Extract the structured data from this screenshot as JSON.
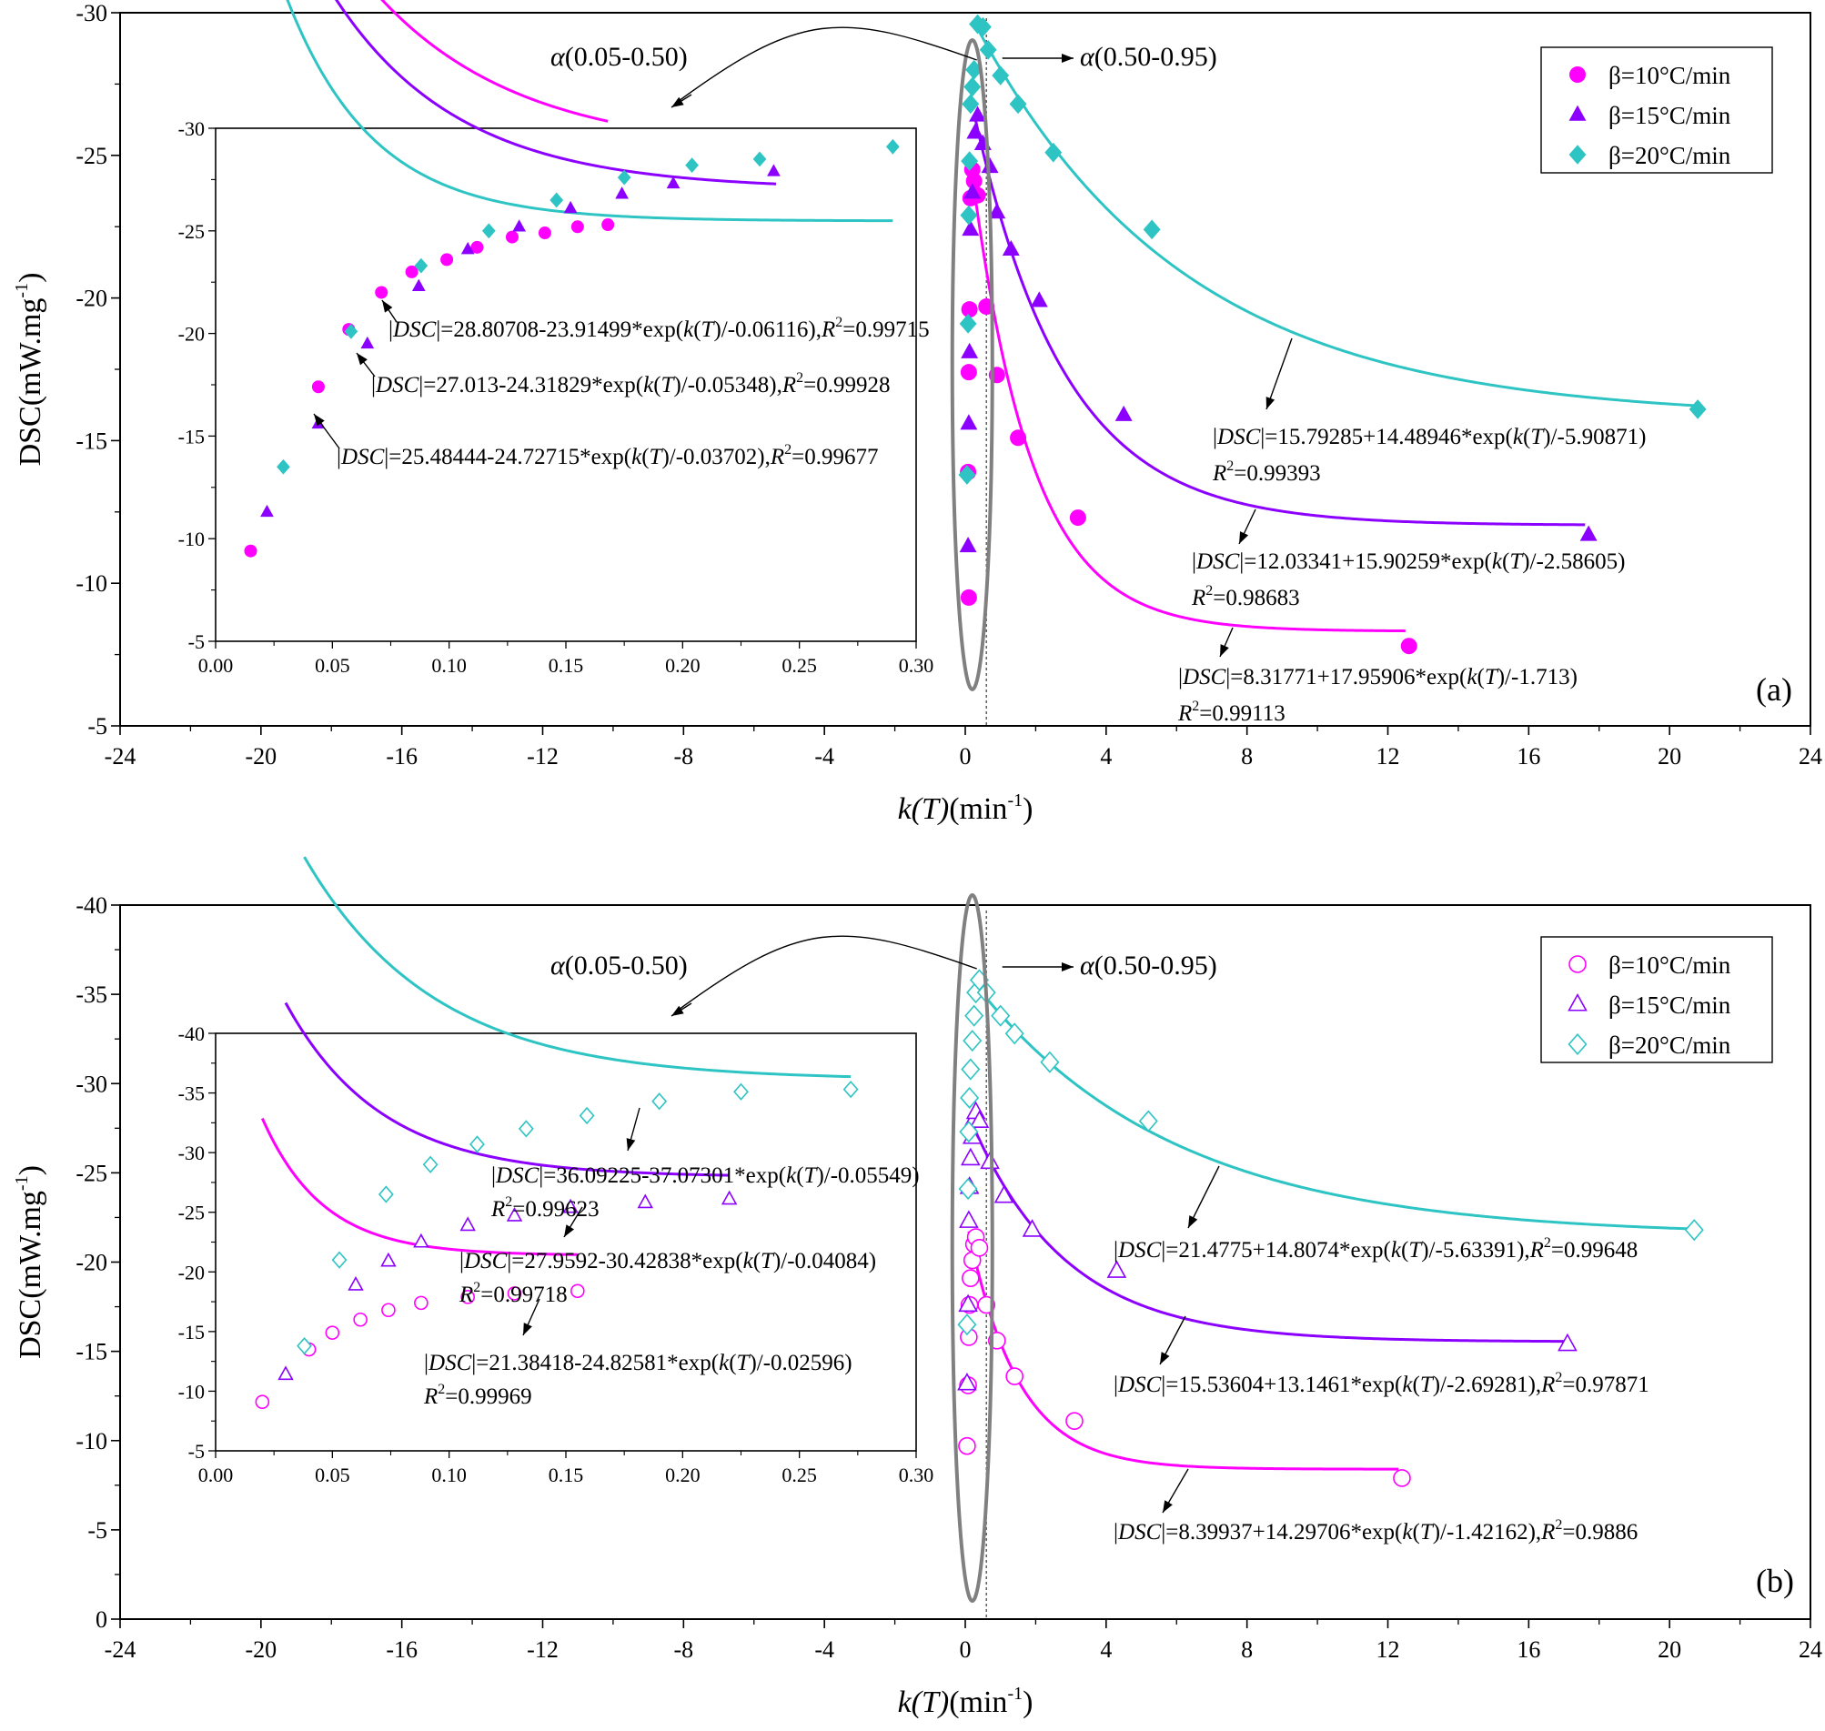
{
  "colors": {
    "pink": "#ff00ff",
    "purple": "#8b00ff",
    "cyan": "#2ec4c4"
  },
  "chart_data": [
    {
      "panel": "(a)",
      "type": "scatter",
      "marker_fill": "filled",
      "xlabel_main": "k(T)",
      "xlabel_unit": "(min",
      "xlabel_sup": "-1",
      "xlabel_close": ")",
      "ylabel_main": "DSC(mW.mg",
      "ylabel_sup": "-1",
      "ylabel_close": ")",
      "xlim": [
        -24,
        24
      ],
      "ylim": [
        -30,
        -5
      ],
      "xticks": [
        "-24",
        "-20",
        "-16",
        "-12",
        "-8",
        "-4",
        "0",
        "4",
        "8",
        "12",
        "16",
        "20",
        "24"
      ],
      "yticks": [
        "-30",
        "-25",
        "-20",
        "-15",
        "-10",
        "-5"
      ],
      "alpha_left": "(0.05-0.50)",
      "alpha_right": "(0.50-0.95)",
      "alpha_symbol": "α",
      "legend": [
        "β=10°C/min",
        "β=15°C/min",
        "β=20°C/min"
      ],
      "series": [
        {
          "name": "β=10°C/min",
          "marker": "circle",
          "points": [
            [
              0.1,
              -9.5
            ],
            [
              0.08,
              -13.9
            ],
            [
              0.1,
              -17.4
            ],
            [
              0.12,
              -19.6
            ],
            [
              0.15,
              -23.5
            ],
            [
              0.2,
              -24.5
            ],
            [
              0.25,
              -24.1
            ],
            [
              0.35,
              -23.6
            ],
            [
              0.6,
              -19.7
            ],
            [
              0.9,
              -17.3
            ],
            [
              1.5,
              -15.1
            ],
            [
              3.2,
              -12.3
            ],
            [
              12.6,
              -7.8
            ]
          ],
          "fit": {
            "a": 8.31771,
            "b": 17.95906,
            "t": 1.713,
            "x0": 0.3,
            "x1": 12.5
          }
        },
        {
          "name": "β=15°C/min",
          "marker": "triangle",
          "points": [
            [
              0.08,
              -11.3
            ],
            [
              0.1,
              -15.6
            ],
            [
              0.12,
              -18.1
            ],
            [
              0.15,
              -22.4
            ],
            [
              0.2,
              -23.7
            ],
            [
              0.28,
              -25.8
            ],
            [
              0.35,
              -26.4
            ],
            [
              0.5,
              -25.4
            ],
            [
              0.7,
              -24.6
            ],
            [
              0.9,
              -23.0
            ],
            [
              1.3,
              -21.7
            ],
            [
              2.1,
              -19.9
            ],
            [
              4.5,
              -15.9
            ],
            [
              17.7,
              -11.7
            ]
          ],
          "fit": {
            "a": 12.03341,
            "b": 15.90259,
            "t": 2.58605,
            "x0": 0.3,
            "x1": 17.6
          }
        },
        {
          "name": "β=20°C/min",
          "marker": "diamond",
          "points": [
            [
              0.05,
              -13.8
            ],
            [
              0.08,
              -19.1
            ],
            [
              0.1,
              -22.9
            ],
            [
              0.12,
              -24.8
            ],
            [
              0.15,
              -26.8
            ],
            [
              0.2,
              -27.4
            ],
            [
              0.25,
              -28.0
            ],
            [
              0.35,
              -29.6
            ],
            [
              0.5,
              -29.5
            ],
            [
              0.65,
              -28.7
            ],
            [
              1.0,
              -27.8
            ],
            [
              1.5,
              -26.8
            ],
            [
              2.5,
              -25.1
            ],
            [
              5.3,
              -22.4
            ],
            [
              20.8,
              -16.1
            ]
          ],
          "fit": {
            "a": 15.79285,
            "b": 14.48946,
            "t": 5.90871,
            "x0": 0.3,
            "x1": 20.9
          }
        }
      ],
      "inset": {
        "xlim": [
          0,
          0.3
        ],
        "ylim": [
          -30,
          -5
        ],
        "xticks": [
          "0.00",
          "0.05",
          "0.10",
          "0.15",
          "0.20",
          "0.25",
          "0.30"
        ],
        "yticks": [
          "-30",
          "-25",
          "-20",
          "-15",
          "-10",
          "-5"
        ],
        "series": [
          {
            "name": "β=10°C/min",
            "points": [
              [
                0.015,
                -9.4
              ],
              [
                0.044,
                -17.4
              ],
              [
                0.057,
                -20.2
              ],
              [
                0.071,
                -22.0
              ],
              [
                0.084,
                -23.0
              ],
              [
                0.099,
                -23.6
              ],
              [
                0.112,
                -24.2
              ],
              [
                0.127,
                -24.7
              ],
              [
                0.141,
                -24.9
              ],
              [
                0.155,
                -25.2
              ],
              [
                0.168,
                -25.3
              ]
            ],
            "fit": {
              "a": 28.80708,
              "b": 23.91499,
              "t": 0.06116,
              "x0": 0.015,
              "x1": 0.168
            }
          },
          {
            "name": "β=15°C/min",
            "points": [
              [
                0.022,
                -11.3
              ],
              [
                0.044,
                -15.6
              ],
              [
                0.065,
                -19.5
              ],
              [
                0.087,
                -22.3
              ],
              [
                0.108,
                -24.1
              ],
              [
                0.13,
                -25.2
              ],
              [
                0.152,
                -26.1
              ],
              [
                0.174,
                -26.8
              ],
              [
                0.196,
                -27.3
              ],
              [
                0.239,
                -27.9
              ]
            ],
            "fit": {
              "a": 27.013,
              "b": 24.31829,
              "t": 0.05348,
              "x0": 0.022,
              "x1": 0.24
            }
          },
          {
            "name": "β=20°C/min",
            "points": [
              [
                0.029,
                -13.5
              ],
              [
                0.058,
                -20.1
              ],
              [
                0.088,
                -23.3
              ],
              [
                0.117,
                -25.0
              ],
              [
                0.146,
                -26.5
              ],
              [
                0.175,
                -27.6
              ],
              [
                0.204,
                -28.2
              ],
              [
                0.233,
                -28.5
              ],
              [
                0.29,
                -29.1
              ]
            ],
            "fit": {
              "a": 25.48444,
              "b": 24.72715,
              "t": 0.03702,
              "x0": 0.029,
              "x1": 0.29
            }
          }
        ],
        "fit_labels": [
          {
            "pre": "|",
            "em": "DSC",
            "mid": "|=28.80708-23.91499*exp(",
            "em2": "k",
            "p": "(",
            "em3": "T",
            "post": ")/-0.06116),",
            "r": "R",
            "sup": "2",
            "tail": "=0.99715"
          },
          {
            "pre": "|",
            "em": "DSC",
            "mid": "|=27.013-24.31829*exp(",
            "em2": "k",
            "p": "(",
            "em3": "T",
            "post": ")/-0.05348),",
            "r": "R",
            "sup": "2",
            "tail": "=0.99928"
          },
          {
            "pre": "|",
            "em": "DSC",
            "mid": "|=25.48444-24.72715*exp(",
            "em2": "k",
            "p": "(",
            "em3": "T",
            "post": ")/-0.03702),",
            "r": "R",
            "sup": "2",
            "tail": "=0.99677"
          }
        ]
      },
      "fit_labels": [
        {
          "line1": "|DSC|=15.79285+14.48946*exp(k(T)/-5.90871)",
          "r": "R",
          "sup": "2",
          "tail": "=0.99393"
        },
        {
          "line1": "|DSC|=12.03341+15.90259*exp(k(T)/-2.58605)",
          "r": "R",
          "sup": "2",
          "tail": "=0.98683"
        },
        {
          "line1": "|DSC|=8.31771+17.95906*exp(k(T)/-1.713)",
          "r": "R",
          "sup": "2",
          "tail": "=0.99113"
        }
      ]
    },
    {
      "panel": "(b)",
      "type": "scatter",
      "marker_fill": "open",
      "xlabel_main": "k(T)",
      "xlabel_unit": "(min",
      "xlabel_sup": "-1",
      "xlabel_close": ")",
      "ylabel_main": "DSC(mW.mg",
      "ylabel_sup": "-1",
      "ylabel_close": ")",
      "xlim": [
        -24,
        24
      ],
      "ylim": [
        -40,
        0
      ],
      "xticks": [
        "-24",
        "-20",
        "-16",
        "-12",
        "-8",
        "-4",
        "0",
        "4",
        "8",
        "12",
        "16",
        "20",
        "24"
      ],
      "yticks": [
        "-40",
        "-35",
        "-30",
        "-25",
        "-20",
        "-15",
        "-10",
        "-5",
        "0"
      ],
      "alpha_left": "(0.05-0.50)",
      "alpha_right": "(0.50-0.95)",
      "alpha_symbol": "α",
      "legend": [
        "β=10°C/min",
        "β=15°C/min",
        "β=20°C/min"
      ],
      "series": [
        {
          "name": "β=10°C/min",
          "marker": "circle",
          "points": [
            [
              0.05,
              -9.7
            ],
            [
              0.08,
              -13.1
            ],
            [
              0.1,
              -15.8
            ],
            [
              0.12,
              -17.6
            ],
            [
              0.15,
              -19.1
            ],
            [
              0.2,
              -20.1
            ],
            [
              0.25,
              -21.0
            ],
            [
              0.3,
              -21.4
            ],
            [
              0.4,
              -20.8
            ],
            [
              0.6,
              -17.6
            ],
            [
              0.9,
              -15.6
            ],
            [
              1.4,
              -13.6
            ],
            [
              3.1,
              -11.1
            ],
            [
              12.4,
              -7.9
            ]
          ],
          "fit": {
            "a": 8.39937,
            "b": 14.29706,
            "t": 1.42162,
            "x0": 0.1,
            "x1": 12.3
          }
        },
        {
          "name": "β=15°C/min",
          "marker": "triangle",
          "points": [
            [
              0.05,
              -13.2
            ],
            [
              0.08,
              -17.6
            ],
            [
              0.1,
              -22.3
            ],
            [
              0.12,
              -24.2
            ],
            [
              0.15,
              -25.8
            ],
            [
              0.2,
              -27.0
            ],
            [
              0.25,
              -28.0
            ],
            [
              0.3,
              -28.4
            ],
            [
              0.4,
              -27.9
            ],
            [
              0.7,
              -25.6
            ],
            [
              1.1,
              -23.7
            ],
            [
              1.9,
              -21.8
            ],
            [
              4.3,
              -19.5
            ],
            [
              17.1,
              -15.4
            ]
          ],
          "fit": {
            "a": 15.53604,
            "b": 13.1461,
            "t": 2.69281,
            "x0": 0.1,
            "x1": 17.0
          }
        },
        {
          "name": "β=20°C/min",
          "marker": "diamond",
          "points": [
            [
              0.05,
              -16.5
            ],
            [
              0.08,
              -24.1
            ],
            [
              0.1,
              -27.3
            ],
            [
              0.12,
              -29.2
            ],
            [
              0.15,
              -30.8
            ],
            [
              0.2,
              -32.4
            ],
            [
              0.25,
              -33.8
            ],
            [
              0.3,
              -35.1
            ],
            [
              0.4,
              -35.8
            ],
            [
              0.6,
              -35.1
            ],
            [
              1.0,
              -33.8
            ],
            [
              1.4,
              -32.8
            ],
            [
              2.4,
              -31.2
            ],
            [
              5.2,
              -27.9
            ],
            [
              20.7,
              -21.8
            ]
          ],
          "fit": {
            "a": 21.4775,
            "b": 14.8074,
            "t": 5.63391,
            "x0": 0.3,
            "x1": 20.7
          }
        }
      ],
      "inset": {
        "xlim": [
          0,
          0.3
        ],
        "ylim": [
          -40,
          -5
        ],
        "xticks": [
          "0.00",
          "0.05",
          "0.10",
          "0.15",
          "0.20",
          "0.25",
          "0.30"
        ],
        "yticks": [
          "-40",
          "-35",
          "-30",
          "-25",
          "-20",
          "-15",
          "-10",
          "-5"
        ],
        "series": [
          {
            "name": "β=10°C/min",
            "points": [
              [
                0.02,
                -9.1
              ],
              [
                0.04,
                -13.5
              ],
              [
                0.05,
                -14.9
              ],
              [
                0.062,
                -16.0
              ],
              [
                0.074,
                -16.8
              ],
              [
                0.088,
                -17.4
              ],
              [
                0.108,
                -17.9
              ],
              [
                0.128,
                -18.2
              ],
              [
                0.155,
                -18.4
              ]
            ],
            "fit": {
              "a": 21.38418,
              "b": 24.82581,
              "t": 0.02596,
              "x0": 0.02,
              "x1": 0.155
            }
          },
          {
            "name": "β=15°C/min",
            "points": [
              [
                0.03,
                -11.4
              ],
              [
                0.06,
                -18.9
              ],
              [
                0.074,
                -20.9
              ],
              [
                0.088,
                -22.5
              ],
              [
                0.108,
                -23.9
              ],
              [
                0.128,
                -24.7
              ],
              [
                0.152,
                -25.4
              ],
              [
                0.184,
                -25.8
              ],
              [
                0.22,
                -26.1
              ]
            ],
            "fit": {
              "a": 27.9592,
              "b": 30.42838,
              "t": 0.04084,
              "x0": 0.03,
              "x1": 0.22
            }
          },
          {
            "name": "β=20°C/min",
            "points": [
              [
                0.038,
                -13.8
              ],
              [
                0.053,
                -21.0
              ],
              [
                0.073,
                -26.5
              ],
              [
                0.092,
                -29.0
              ],
              [
                0.112,
                -30.7
              ],
              [
                0.133,
                -32.0
              ],
              [
                0.159,
                -33.1
              ],
              [
                0.19,
                -34.3
              ],
              [
                0.225,
                -35.1
              ],
              [
                0.272,
                -35.3
              ]
            ],
            "fit": {
              "a": 36.09225,
              "b": 37.07301,
              "t": 0.05549,
              "x0": 0.038,
              "x1": 0.272
            }
          }
        ],
        "fit_labels": [
          {
            "line1": "|DSC|=36.09225-37.07301*exp(k(T)/-0.05549)",
            "r": "R",
            "sup": "2",
            "tail": "=0.99623"
          },
          {
            "line1": "|DSC|=27.9592-30.42838*exp(k(T)/-0.04084)",
            "r": "R",
            "sup": "2",
            "tail": "=0.99718"
          },
          {
            "line1": "|DSC|=21.38418-24.82581*exp(k(T)/-0.02596)",
            "r": "R",
            "sup": "2",
            "tail": "=0.99969"
          }
        ]
      },
      "fit_labels": [
        {
          "line1": "|DSC|=21.4775+14.8074*exp(k(T)/-5.63391),",
          "r": "R",
          "sup": "2",
          "tail": "=0.99648"
        },
        {
          "line1": "|DSC|=15.53604+13.1461*exp(k(T)/-2.69281),",
          "r": "R",
          "sup": "2",
          "tail": "=0.97871"
        },
        {
          "line1": "|DSC|=8.39937+14.29706*exp(k(T)/-1.42162),",
          "r": "R",
          "sup": "2",
          "tail": "=0.9886"
        }
      ]
    }
  ]
}
